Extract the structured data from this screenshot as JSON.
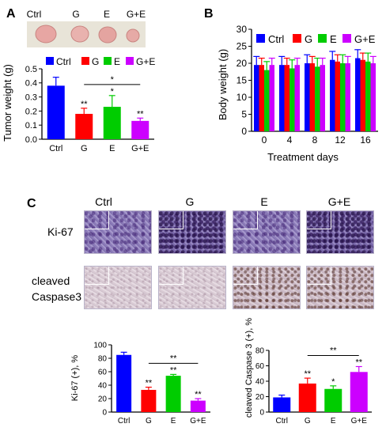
{
  "panels": {
    "a": "A",
    "b": "B",
    "c": "C"
  },
  "photo_labels": [
    "Ctrl",
    "G",
    "E",
    "G+E"
  ],
  "histology": {
    "columns": [
      "Ctrl",
      "G",
      "E",
      "G+E"
    ],
    "rows": [
      "Ki-67",
      "cleaved",
      "Caspase3"
    ]
  },
  "colors": {
    "Ctrl": "#0000ff",
    "G": "#ff0000",
    "E": "#00cc00",
    "G+E": "#cc00ff"
  },
  "chart_data": [
    {
      "type": "bar",
      "panel": "A",
      "categories": [
        "Ctrl",
        "G",
        "E",
        "G+E"
      ],
      "values": [
        0.38,
        0.18,
        0.23,
        0.13
      ],
      "errors": [
        0.06,
        0.04,
        0.08,
        0.02
      ],
      "significance": [
        "",
        "**",
        "*",
        "**"
      ],
      "bracket": {
        "from": "G",
        "to": "G+E",
        "label": "*"
      },
      "ylabel": "Tumor weight (g)",
      "xlabel": "",
      "ylim": [
        0,
        0.5
      ],
      "yticks": [
        "0.0",
        "0.1",
        "0.2",
        "0.3",
        "0.4",
        "0.5"
      ],
      "legend": [
        "Ctrl",
        "G",
        "E",
        "G+E"
      ]
    },
    {
      "type": "bar",
      "panel": "B",
      "categories": [
        "0",
        "4",
        "8",
        "12",
        "16"
      ],
      "series": [
        {
          "name": "Ctrl",
          "values": [
            19.5,
            19.5,
            20,
            21,
            21.5
          ],
          "errors": [
            2.5,
            2.5,
            2.5,
            2.5,
            2.5
          ]
        },
        {
          "name": "G",
          "values": [
            19.5,
            19.5,
            20,
            20.5,
            21
          ],
          "errors": [
            2,
            2,
            2,
            2,
            2
          ]
        },
        {
          "name": "E",
          "values": [
            18,
            18.5,
            19,
            20,
            20.5
          ],
          "errors": [
            2.5,
            2.5,
            2.5,
            2.5,
            2.5
          ]
        },
        {
          "name": "G+E",
          "values": [
            19.5,
            19.5,
            19.5,
            20,
            20
          ],
          "errors": [
            2,
            2,
            2,
            2,
            2
          ]
        }
      ],
      "ylabel": "Body weight (g)",
      "xlabel": "Treatment days",
      "ylim": [
        0,
        30
      ],
      "yticks": [
        "0",
        "5",
        "10",
        "15",
        "20",
        "25",
        "30"
      ]
    },
    {
      "type": "bar",
      "panel": "C-left",
      "categories": [
        "Ctrl",
        "G",
        "E",
        "G+E"
      ],
      "values": [
        85,
        33,
        54,
        17
      ],
      "errors": [
        4,
        4,
        2,
        3
      ],
      "significance": [
        "",
        "**",
        "**",
        "**"
      ],
      "bracket": {
        "from": "G",
        "to": "G+E",
        "label": "**"
      },
      "ylabel": "Ki-67 (+), %",
      "xlabel": "",
      "ylim": [
        0,
        100
      ],
      "yticks": [
        "0",
        "20",
        "40",
        "60",
        "80",
        "100"
      ]
    },
    {
      "type": "bar",
      "panel": "C-right",
      "categories": [
        "Ctrl",
        "G",
        "E",
        "G+E"
      ],
      "values": [
        19,
        37,
        30,
        52
      ],
      "errors": [
        3,
        7,
        4,
        7
      ],
      "significance": [
        "",
        "**",
        "*",
        "**"
      ],
      "bracket": {
        "from": "G",
        "to": "G+E",
        "label": "**"
      },
      "ylabel": "cleaved Caspase 3 (+), %",
      "xlabel": "",
      "ylim": [
        0,
        80
      ],
      "yticks": [
        "0",
        "20",
        "40",
        "60",
        "80"
      ]
    }
  ]
}
